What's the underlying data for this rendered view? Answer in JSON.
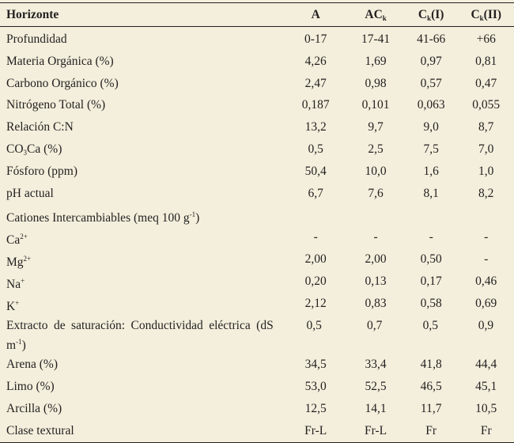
{
  "table": {
    "header": {
      "label": "Horizonte",
      "columns": [
        {
          "base": "A",
          "sub": "",
          "suffix": ""
        },
        {
          "base": "AC",
          "sub": "k",
          "suffix": ""
        },
        {
          "base": "C",
          "sub": "k",
          "suffix": "(I)"
        },
        {
          "base": "C",
          "sub": "k",
          "suffix": "(II)"
        }
      ]
    },
    "rows": [
      {
        "label": "Profundidad",
        "values": [
          "0-17",
          "17-41",
          "41-66",
          "+66"
        ]
      },
      {
        "label": "Materia Orgánica (%)",
        "values": [
          "4,26",
          "1,69",
          "0,97",
          "0,81"
        ]
      },
      {
        "label": "Carbono Orgánico (%)",
        "values": [
          "2,47",
          "0,98",
          "0,57",
          "0,47"
        ]
      },
      {
        "label": "Nitrógeno Total (%)",
        "values": [
          "0,187",
          "0,101",
          "0,063",
          "0,055"
        ]
      },
      {
        "label": "Relación C:N",
        "values": [
          "13,2",
          "9,7",
          "9,0",
          "8,7"
        ]
      },
      {
        "label_pre": "CO",
        "label_sub": "3",
        "label_post": "Ca (%)",
        "values": [
          "0,5",
          "2,5",
          "7,5",
          "7,0"
        ]
      },
      {
        "label": "Fósforo (ppm)",
        "values": [
          "50,4",
          "10,0",
          "1,6",
          "1,0"
        ]
      },
      {
        "label": "pH actual",
        "values": [
          "6,7",
          "7,6",
          "8,1",
          "8,2"
        ]
      },
      {
        "label_pre": "Cationes Intercambiables (meq 100 g",
        "label_sup": "-1",
        "label_post": ")",
        "values": [
          "",
          "",
          "",
          ""
        ]
      },
      {
        "label_pre": "Ca",
        "label_sup": "2+",
        "label_post": "",
        "values": [
          "-",
          "-",
          "-",
          "-"
        ]
      },
      {
        "label_pre": "Mg",
        "label_sup": "2+",
        "label_post": "",
        "values": [
          "2,00",
          "2,00",
          "0,50",
          "-"
        ]
      },
      {
        "label_pre": "Na",
        "label_sup": "+",
        "label_post": "",
        "values": [
          "0,20",
          "0,13",
          "0,17",
          "0,46"
        ]
      },
      {
        "label_pre": "K",
        "label_sup": "+",
        "label_post": "",
        "values": [
          "2,12",
          "0,83",
          "0,58",
          "0,69"
        ]
      },
      {
        "label_pre": "Extracto de saturación: Conductividad eléctrica (dS m",
        "label_sup": "-1",
        "label_post": ")",
        "values": [
          "0,5",
          "0,7",
          "0,5",
          "0,9"
        ]
      },
      {
        "label": "Arena (%)",
        "values": [
          "34,5",
          "33,4",
          "41,8",
          "44,4"
        ]
      },
      {
        "label": "Limo (%)",
        "values": [
          "53,0",
          "52,5",
          "46,5",
          "45,1"
        ]
      },
      {
        "label": "Arcilla (%)",
        "values": [
          "12,5",
          "14,1",
          "11,7",
          "10,5"
        ]
      },
      {
        "label": "Clase textural",
        "values": [
          "Fr-L",
          "Fr-L",
          "Fr",
          "Fr"
        ]
      }
    ]
  }
}
